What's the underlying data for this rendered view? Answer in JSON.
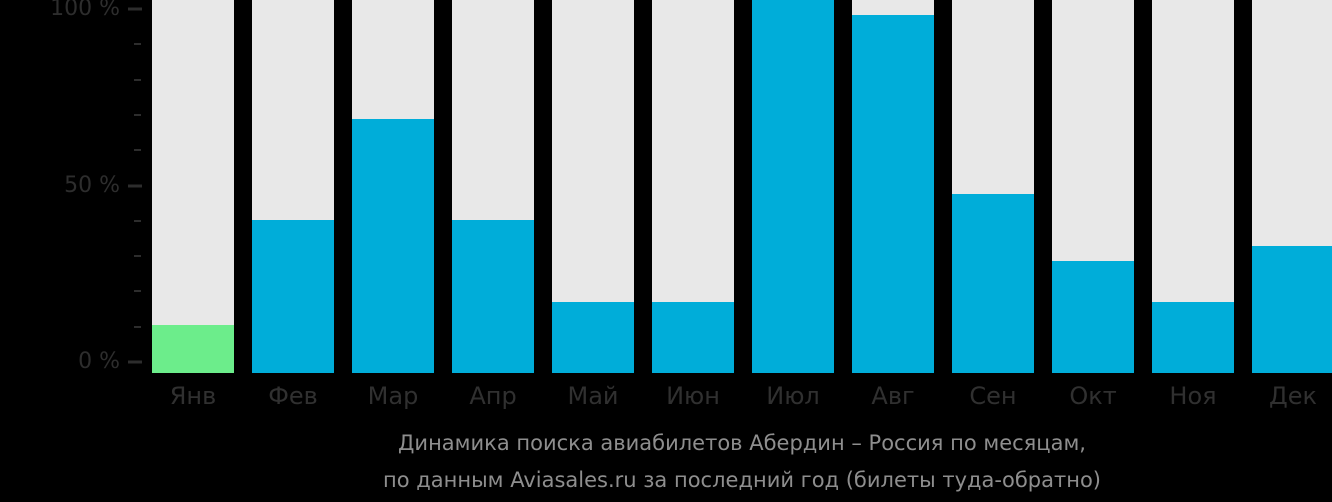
{
  "background": "#000000",
  "chart_data": {
    "type": "bar",
    "title": "Динамика поиска авиабилетов Абердин – Россия по месяцам,",
    "subtitle": "по данным Aviasales.ru за последний год (билеты туда-обратно)",
    "categories": [
      "Янв",
      "Фев",
      "Мар",
      "Апр",
      "Май",
      "Июн",
      "Июл",
      "Авг",
      "Сен",
      "Окт",
      "Ноя",
      "Дек"
    ],
    "values": [
      13,
      41,
      68,
      41,
      19,
      19,
      100,
      96,
      48,
      30,
      19,
      34
    ],
    "unit": "%",
    "xlabel": "",
    "ylabel": "",
    "ylim": [
      0,
      100
    ],
    "yticks_labeled": [
      {
        "value": 100,
        "label": "100 %"
      },
      {
        "value": 50,
        "label": "50 %"
      },
      {
        "value": 0,
        "label": "0 %"
      }
    ],
    "minor_tick_step": 10,
    "highlight_index": 0,
    "grid": false,
    "legend_position": "none",
    "colors": {
      "bar": "#00ADD9",
      "highlight_bar": "#6CED8B",
      "track": "#E8E8E8",
      "axis_text": "#2D2D2D",
      "month_text": "#303030",
      "caption_text": "#8E8E8E"
    }
  },
  "caption": {
    "line1": "Динамика поиска авиабилетов Абердин – Россия по месяцам,",
    "line2": "по данным Aviasales.ru за последний год (билеты туда-обратно)"
  }
}
